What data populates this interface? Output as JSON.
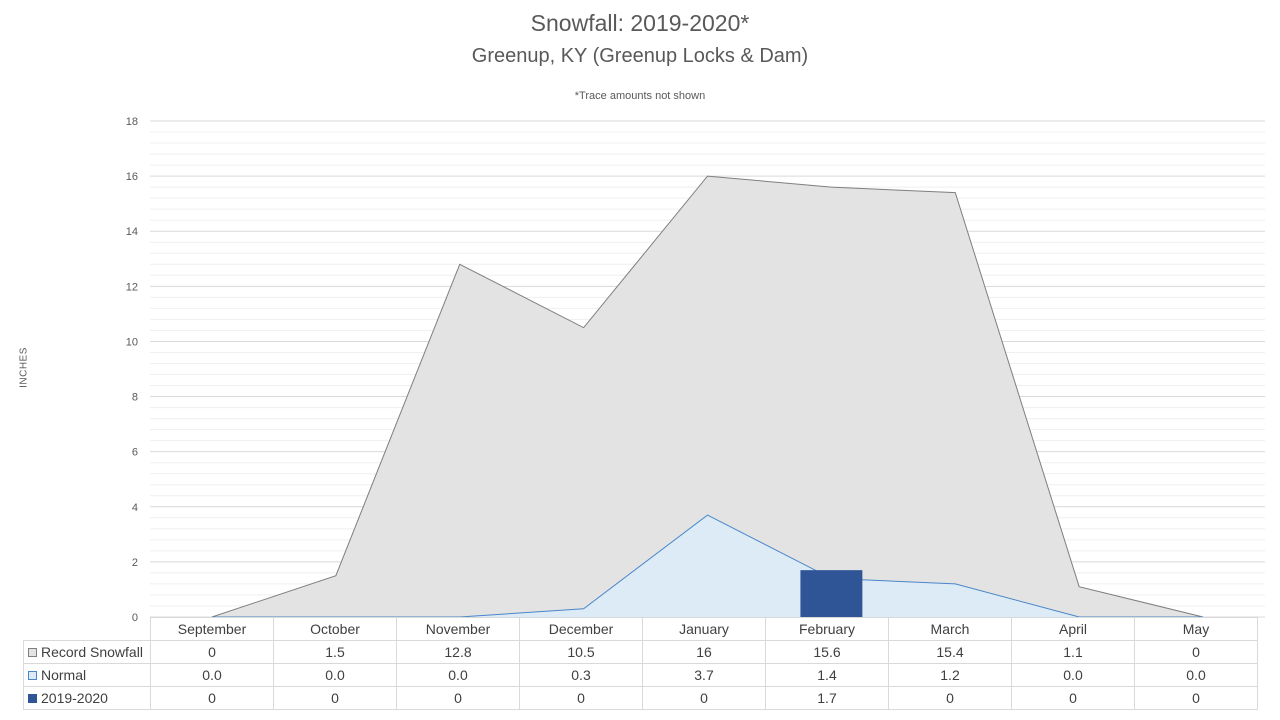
{
  "title": "Snowfall: 2019-2020*",
  "subtitle": "Greenup, KY (Greenup Locks & Dam)",
  "note": "*Trace amounts not shown",
  "chart_data": {
    "type": "area",
    "title": "Snowfall: 2019-2020*",
    "ylabel": "INCHES",
    "ylim": [
      0,
      18
    ],
    "yticks": [
      0,
      2,
      4,
      6,
      8,
      10,
      12,
      14,
      16,
      18
    ],
    "categories": [
      "September",
      "October",
      "November",
      "December",
      "January",
      "February",
      "March",
      "April",
      "May"
    ],
    "series": [
      {
        "name": "Record Snowfall",
        "kind": "area",
        "color": "#e3e3e3",
        "stroke": "#7f7f7f",
        "values": [
          0,
          1.5,
          12.8,
          10.5,
          16,
          15.6,
          15.4,
          1.1,
          0
        ],
        "labels": [
          "0",
          "1.5",
          "12.8",
          "10.5",
          "16",
          "15.6",
          "15.4",
          "1.1",
          "0"
        ]
      },
      {
        "name": "Normal",
        "kind": "area",
        "color": "#ddebf7",
        "stroke": "#4a86c8",
        "values": [
          0.0,
          0.0,
          0.0,
          0.3,
          3.7,
          1.4,
          1.2,
          0.0,
          0.0
        ],
        "labels": [
          "0.0",
          "0.0",
          "0.0",
          "0.3",
          "3.7",
          "1.4",
          "1.2",
          "0.0",
          "0.0"
        ]
      },
      {
        "name": "2019-2020",
        "kind": "bar",
        "color": "#2f5597",
        "values": [
          0,
          0,
          0,
          0,
          0,
          1.7,
          0,
          0,
          0
        ],
        "labels": [
          "0",
          "0",
          "0",
          "0",
          "0",
          "1.7",
          "0",
          "0",
          "0"
        ]
      }
    ],
    "grid": true,
    "legend": "data-table"
  }
}
